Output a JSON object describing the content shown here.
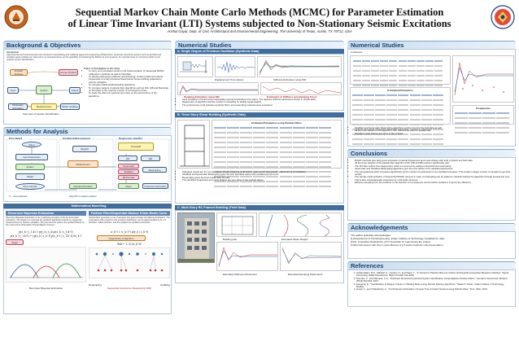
{
  "poster": {
    "title_line1": "Sequential Markov Chain Monte Carlo Methods (MCMC) for Parameter Estimation",
    "title_line2": "of Linear Time Invariant (LTI) Systems subjected to Non-Stationary Seismic Excitations",
    "authors": "Anshul Goyal, Dept. of Civil, Architectural and Environmental Engineering, The University of Texas, Austin, TX 78712, USA",
    "colors": {
      "accent": "#1a3f6e",
      "header_band": "#c7dcef",
      "subhead": "#3f6d9e",
      "red": "#b02121"
    }
  },
  "left": {
    "background": {
      "heading": "Background & Objectives",
      "intro_label": "Introduction",
      "intro_text": "High financial and environmental costs involved in demolishing and replacing aging civil engineering infrastructure, expensive structural systems such as aircrafts and movable space vehicles etc. have led to an increased focus on the possibility of monitoring the lifetime of such systems. An important step in monitoring which in turn requires system identification.",
      "topics_title": "Topics of investigation in this study",
      "topics": [
        "To carry out a simulation study on the implementation of Sequential MCMC methods for synthetic as well as field data.",
        "To identify parameters (stiffness and damping), modal models and natural frequencies of a fully functional Steel-framed house building subjected to seismic excitation.",
        "To compare traditional Resampling algorithms.",
        "To compare variants of particle filter algorithms such as SIS, SIR and Bootstrap on the basis of the required number of convergence times.",
        "To study the effect of measurement noise on the performance of the algorithms."
      ],
      "summary_caption": "Summary of System Identification",
      "diagram_nodes": [
        "Input",
        "System",
        "Output",
        "Measurements",
        "Forward Problem",
        "Inverse Problem",
        "Parameter Estimation",
        "Model Updating"
      ]
    },
    "methods": {
      "heading": "Methods for Analysis",
      "sub_prior": "Prior Belief",
      "sub_predict": "Predicted Measurement",
      "sub_degen": "Degeneracy Handler",
      "nodes": [
        "θ(k-1)",
        "Input Parameters",
        "Initial Model",
        "System",
        "Model",
        "Measurement",
        "Weights",
        "Threshold",
        "Neff < NT",
        "SIS",
        "SIR",
        "Systematic",
        "Stratified",
        "Multinomial",
        "Resampling",
        "Converging",
        "Mean",
        "Parameter Estimation",
        "Standard Deviation",
        "Error Analysis",
        "Move Sample",
        "Updating"
      ],
      "foot_left": "θ – new particles",
      "foot_right": "Algorithm implementation",
      "math_heading": "Mathematical Modelling",
      "rbe_heading": "Recursive Bayesian Estimation",
      "pf_heading": "Particle Filter/Sequential Markov Chain Monte Carlo",
      "rbe_text": "Recursive Bayesian Estimation is the underlying principle of the dynamic state estimation. The target is to estimate the posterior distribution based on sequential measurements or random variables. The prior and the system are updated based on the most recent observation through Bayes' theorem.",
      "pf_text": "Particle filter generates a set of samples that approximates the filtering distribution. The expectation with respect to the posterior distribution can be approximated by N i.i.d. samples, called particles, and the weights are updated recursively.",
      "rbe_caption": "Recursive Bayesian Estimation",
      "target_label": "Target",
      "degeneracy_label": "Degeneracy of Algorithm",
      "updating_label": "Updating",
      "resample_label": "Resampling",
      "resample_caption": "Sequential Importance Resampling (SIR)",
      "neff_text": "Neff < NT",
      "formulas": [
        "p(x_k | y_1:k) ∝ p(y_k | x_k) p(x_k | y_1:k-1)",
        "p(x_k | y_1:k-1) = ∫ p(x_k | x_k-1) p(x_k-1 | y_1:k-1) dx_k-1",
        "w_k^i ∝ w_k-1^i p(y_k | x_k^i)",
        "Neff = 1 / Σ (w_k^i)²"
      ]
    }
  },
  "middle": {
    "heading": "Numerical Studies",
    "sdof": {
      "heading": "A. Single Degree of Freedom Oscillator (Synthetic Data)",
      "caption_a": "Displacement Time History",
      "caption_b": "Stiffness Estimation using SIR",
      "caption_c": "Damping Estimation using SIR",
      "caption_d": "Estimation of Stiffness and damping Errors",
      "bullets": [
        "Input excitation is the El Centro earthquake ground acceleration time series. The degrees stiffness parameters shown in results table.",
        "Degeneracy of algorithm and the random re-sampling by adding equal weights.",
        "The performance of all variants of particle filters and resampling methods were compared."
      ]
    },
    "shear": {
      "heading": "B. Three Story Shear Building (Synthetic Data)",
      "table_title": "Estimated Parameters using Particle Filters",
      "bullets": [
        "Tabulated results are for non-simulation studies based upon El Centro and Loma Prieta ground motions as input excitations.",
        "Stratified and Systematic Resampling gave the best identified values with smallest percent error.",
        "Resampling gives the best results than the SIS.",
        "The identified frequencies and mode shapes are very close to the original values."
      ]
    },
    "field": {
      "heading": "C. Multi-Story RC Framed Building (Field Data)",
      "caption_1": "Building plan",
      "caption_2": "Estimated Mode Shapes",
      "caption_3": "Estimated Stiffness Parameters",
      "caption_4": "Estimated Damping Parameters"
    }
  },
  "right": {
    "heading": "Numerical Studies",
    "sub": "Continued...",
    "table_left_title": "Estimated Parameters",
    "table_right_title": "Frequencies",
    "bullets": [
      "Stratified and Systematic Resampling algorithms perform best for the field data as well.",
      "All the three variants of the algorithm; SIS, SIR and BF perform equally well.",
      "Identified mode shapes are close to the original."
    ],
    "conclusions": {
      "heading": "Conclusions",
      "items": [
        "MCMC methods give fairly good estimates of natural frequencies and mode shapes with both synthetic and field data.",
        "All the three variants of the particle filter algorithm (SIS, SIR and BF) perform significantly well.",
        "The SIS filter suffers from degeneracy which is overcome by adding a threshold and resampling.",
        "Systematic and Stratified Resampling algorithms give the best values of the identified parameters.",
        "The computational effort increases significantly as the number of parameters to be identified increases. This implies a larger number of samples to get best results.",
        "The sample implementation of Sequential MCMC using as a mean of resampling can be added to carefully training the algorithm through several test runs. This is also computationally expensive for a full scale structure.",
        "Effective sampling from the posterior in the direction of convergence can be further studied to improve the efficiency."
      ]
    },
    "ack": {
      "heading": "Acknowledgements",
      "text_1": "The author gratefully acknowledges:",
      "text_2": "[1] Department of Civil Engineering, Indian Institute of Technology Guwahati for data.",
      "text_3": "[2] Dr. Anuradha Chakraborty of IIT Guwahati for supervising the project.",
      "text_4": "Fruitful discussion with Prof. Lance Manuel of UT Austin helped in this presentation."
    },
    "refs": {
      "heading": "References",
      "items": [
        "Arulampalam, M.S., Maskell, S., Gordon, N., and Clapp, T., \"A Tutorial on Particle Filters for Online Nonlinear/Non-Gaussian Bayesian Tracking\", Signal Processing, IEEE Transactions, 50(2):174-188, Feb 2002.",
        "Namdeo, V., and Manohar, C.S., \"Nonlinear Structural Dynamical System Identification Using Adaptive Particle Filters,\" Journal of Sound and Vibration, 306(3):524-563, 2007.",
        "Dangeraj, R., \"Identification of Fatigue Cracks in Vibrating Beam using Particle Filtering Algorithms,\" Master's Thesis, Indian Institute of Technology, Madras.",
        "Goyal, A., and Chakraborty, A., \"On Parameter Estimation of Linear Time Invariant Systems using Particle Filter,\" Proc. SEC, 2013."
      ]
    }
  }
}
